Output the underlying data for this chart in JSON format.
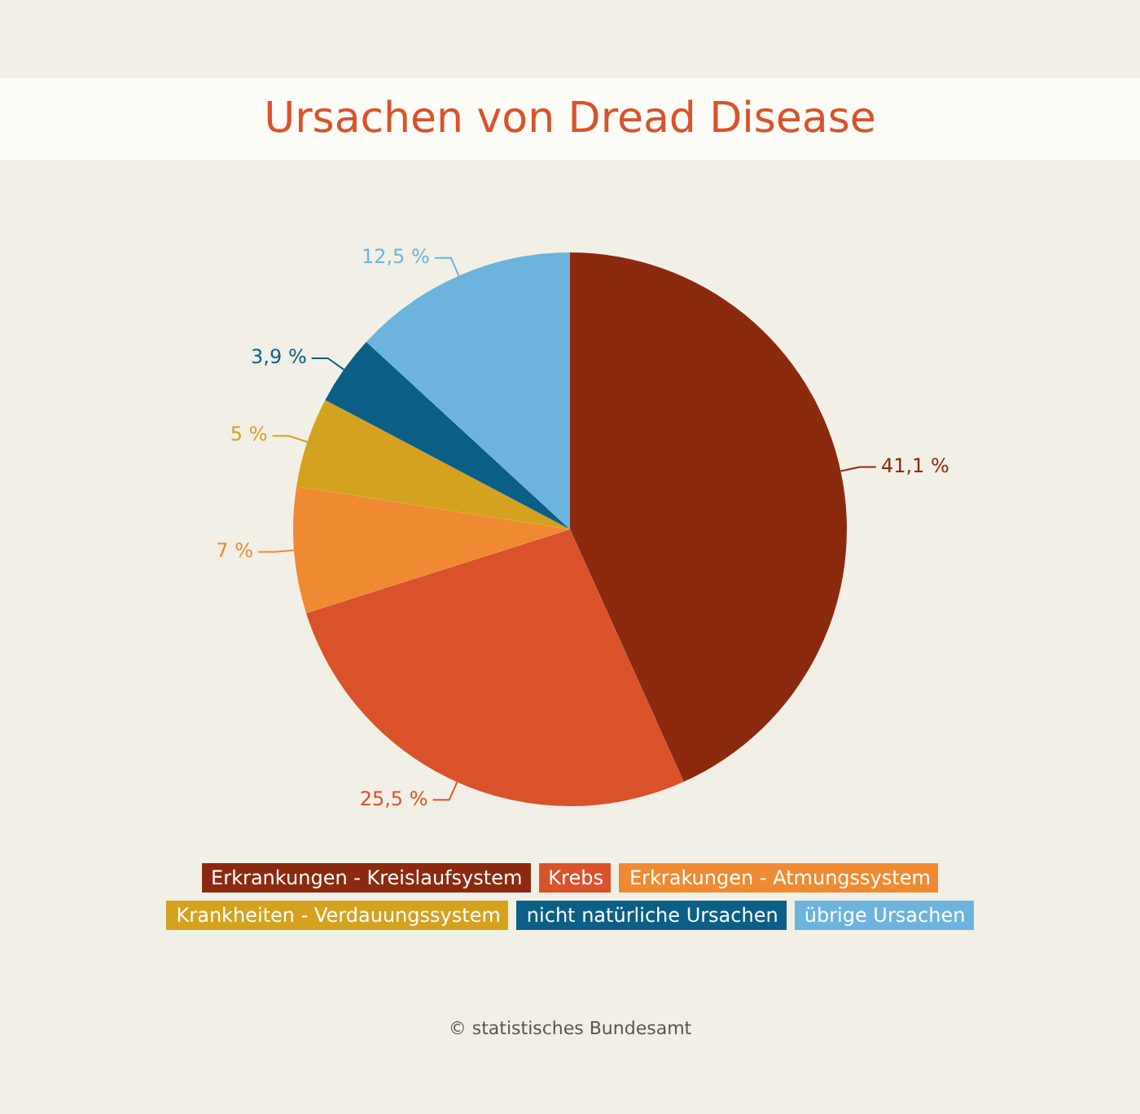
{
  "chart_data": {
    "type": "pie",
    "title": "Ursachen von Dread Disease",
    "categories": [
      "Erkrankungen - Kreislaufsystem",
      "Krebs",
      "Erkrakungen - Atmungssystem",
      "Krankheiten - Verdauungssystem",
      "nicht natürliche Ursachen",
      "übrige Ursachen"
    ],
    "values": [
      41.1,
      25.5,
      7,
      5,
      3.9,
      12.5
    ],
    "value_labels": [
      "41,1 %",
      "25,5 %",
      "7 %",
      "5 %",
      "3,9 %",
      "12,5 %"
    ],
    "colors": [
      "#8b2a0e",
      "#d9522a",
      "#ef8a33",
      "#d4a21e",
      "#0b5f86",
      "#6cb4dd"
    ],
    "legend": "bottom",
    "annotations": [
      "© statistisches Bundesamt"
    ]
  }
}
